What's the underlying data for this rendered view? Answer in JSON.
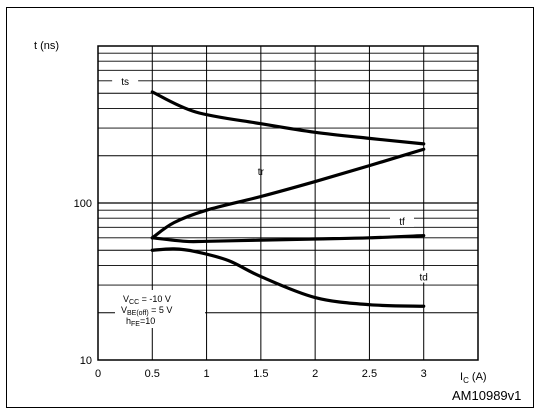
{
  "chart_data": {
    "type": "line",
    "y_axis_label": "t (ns)",
    "x_axis_label_main": "I",
    "x_axis_label_sub": "C",
    "x_axis_label_unit": " (A)",
    "x_ticks": [
      0,
      0.5,
      1,
      1.5,
      2,
      2.5,
      3
    ],
    "x_tick_labels": [
      "0",
      "0.5",
      "1",
      "1.5",
      "2",
      "2.5",
      "3"
    ],
    "y_scale": "log",
    "y_ticks": [
      10,
      100
    ],
    "y_tick_labels": [
      "10",
      "100"
    ],
    "xlim": [
      0,
      3.5
    ],
    "ylim": [
      10,
      1000
    ],
    "grid": true,
    "series": [
      {
        "name": "ts",
        "x": [
          0.5,
          0.9,
          1.5,
          2.0,
          2.5,
          3.0
        ],
        "y": [
          510,
          380,
          320,
          282,
          258,
          238
        ]
      },
      {
        "name": "tr",
        "x": [
          0.5,
          0.7,
          1.0,
          1.5,
          2.0,
          2.5,
          3.0
        ],
        "y": [
          60,
          75,
          90,
          110,
          137,
          173,
          220
        ]
      },
      {
        "name": "tf",
        "x": [
          0.5,
          0.8,
          1.0,
          1.5,
          2.0,
          2.5,
          3.0
        ],
        "y": [
          60,
          57,
          57,
          58,
          59,
          60,
          62
        ]
      },
      {
        "name": "td",
        "x": [
          0.5,
          0.7,
          0.9,
          1.2,
          1.5,
          2.0,
          2.5,
          3.0
        ],
        "y": [
          50,
          51,
          49,
          43,
          34,
          25,
          22.5,
          22
        ]
      }
    ],
    "conditions": {
      "vcc_main": "V",
      "vcc_sub": "CC",
      "vcc_val": " = -10 V",
      "vbe_main": "V",
      "vbe_sub": "BE(off)",
      "vbe_val": " = 5 V",
      "hfe_main": "h",
      "hfe_sub": "FE",
      "hfe_val": "=10"
    },
    "figure_id": "AM10989v1"
  }
}
